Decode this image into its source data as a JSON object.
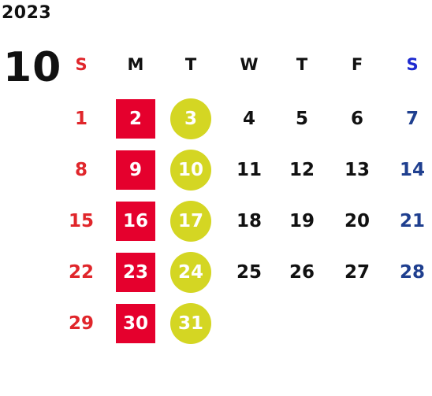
{
  "year": "2023",
  "month": "10",
  "weekdays": [
    "S",
    "M",
    "T",
    "W",
    "T",
    "F",
    "S"
  ],
  "weeks": [
    [
      "1",
      "2",
      "3",
      "4",
      "5",
      "6",
      "7"
    ],
    [
      "8",
      "9",
      "10",
      "11",
      "12",
      "13",
      "14"
    ],
    [
      "15",
      "16",
      "17",
      "18",
      "19",
      "20",
      "21"
    ],
    [
      "22",
      "23",
      "24",
      "25",
      "26",
      "27",
      "28"
    ],
    [
      "29",
      "30",
      "31",
      "",
      "",
      "",
      ""
    ]
  ],
  "colors": {
    "sunday": "#e0262b",
    "saturday": "#1f3f8f",
    "saturday_header": "#1e2ad0",
    "weekday": "#111111",
    "monday_highlight": "#e5002d",
    "tuesday_highlight": "#d4d623"
  }
}
